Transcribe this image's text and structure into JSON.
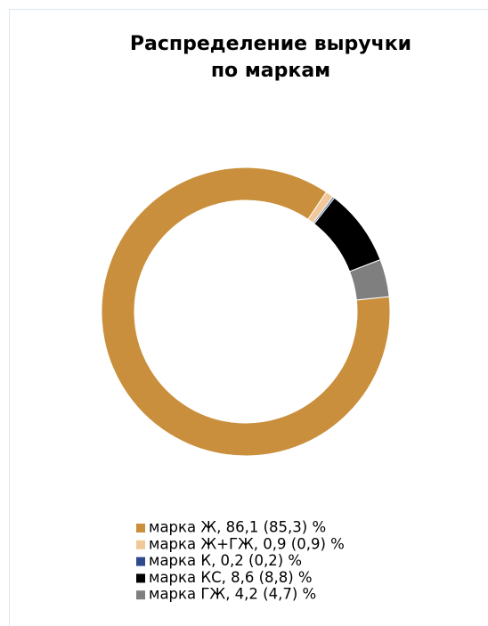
{
  "chart_data": {
    "type": "donut",
    "title": [
      "Распределение выручки",
      "по маркам"
    ],
    "categories": [
      "марка Ж, 86,1 (85,3) %",
      "марка Ж+ГЖ, 0,9 (0,9) %",
      "марка К, 0,2 (0,2) %",
      "марка КС, 8,6 (8,8) %",
      "марка ГЖ, 4,2 (4,7) %"
    ],
    "values": [
      86.1,
      0.9,
      0.2,
      8.6,
      4.2
    ],
    "colors": [
      "#c98f3c",
      "#f0c89a",
      "#2f4a8c",
      "#000000",
      "#7f7f7f"
    ],
    "legend": "bottom"
  }
}
